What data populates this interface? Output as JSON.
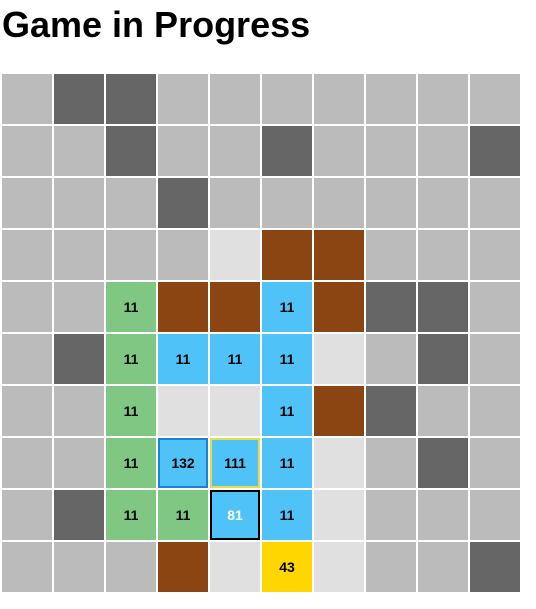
{
  "header": {
    "title": "Game in Progress"
  },
  "legend": {
    "g": "unknown",
    "d": "wall",
    "l": "empty",
    "b": "dirt",
    "n": "green",
    "s": "blue",
    "y": "yellow"
  },
  "board": {
    "rows": [
      [
        "g",
        "d",
        "d",
        "g",
        "g",
        "g",
        "g",
        "g",
        "g",
        "g"
      ],
      [
        "g",
        "g",
        "d",
        "g",
        "g",
        "d",
        "g",
        "g",
        "g",
        "d"
      ],
      [
        "g",
        "g",
        "g",
        "d",
        "g",
        "g",
        "g",
        "g",
        "g",
        "g"
      ],
      [
        "g",
        "g",
        "g",
        "g",
        "l",
        "b",
        "b",
        "g",
        "g",
        "g"
      ],
      [
        "g",
        "g",
        "n",
        "b",
        "b",
        "s",
        "b",
        "d",
        "d",
        "g"
      ],
      [
        "g",
        "d",
        "n",
        "s",
        "s",
        "s",
        "l",
        "g",
        "d",
        "g"
      ],
      [
        "g",
        "g",
        "n",
        "l",
        "l",
        "s",
        "b",
        "d",
        "g",
        "g"
      ],
      [
        "g",
        "g",
        "n",
        "s",
        "s",
        "s",
        "l",
        "g",
        "d",
        "g"
      ],
      [
        "g",
        "d",
        "n",
        "n",
        "s",
        "s",
        "l",
        "g",
        "g",
        "g"
      ],
      [
        "g",
        "g",
        "g",
        "b",
        "l",
        "y",
        "l",
        "g",
        "g",
        "d"
      ]
    ],
    "values": [
      [
        "",
        "",
        "",
        "",
        "",
        "",
        "",
        "",
        "",
        ""
      ],
      [
        "",
        "",
        "",
        "",
        "",
        "",
        "",
        "",
        "",
        ""
      ],
      [
        "",
        "",
        "",
        "",
        "",
        "",
        "",
        "",
        "",
        ""
      ],
      [
        "",
        "",
        "",
        "",
        "",
        "",
        "",
        "",
        "",
        ""
      ],
      [
        "",
        "",
        "11",
        "",
        "",
        "11",
        "",
        "",
        "",
        ""
      ],
      [
        "",
        "",
        "11",
        "11",
        "11",
        "11",
        "",
        "",
        "",
        ""
      ],
      [
        "",
        "",
        "11",
        "",
        "",
        "11",
        "",
        "",
        "",
        ""
      ],
      [
        "",
        "",
        "11",
        "132",
        "111",
        "11",
        "",
        "",
        "",
        ""
      ],
      [
        "",
        "",
        "11",
        "11",
        "81",
        "11",
        "",
        "",
        "",
        ""
      ],
      [
        "",
        "",
        "",
        "",
        "",
        "43",
        "",
        "",
        "",
        ""
      ]
    ],
    "highlights": [
      {
        "row": 7,
        "col": 3,
        "style": "blue"
      },
      {
        "row": 7,
        "col": 4,
        "style": "yellow"
      },
      {
        "row": 8,
        "col": 4,
        "style": "black"
      }
    ]
  }
}
